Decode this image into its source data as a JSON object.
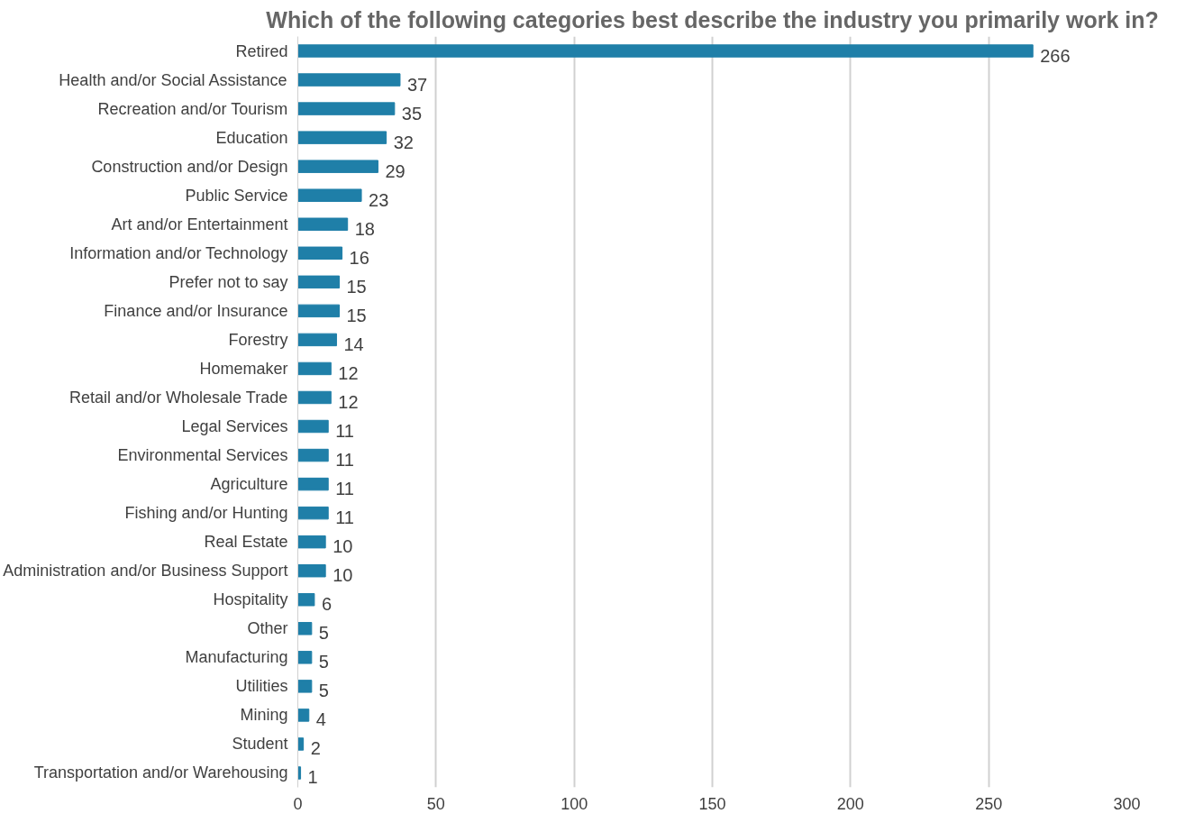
{
  "chart_data": {
    "type": "bar",
    "orientation": "horizontal",
    "title": "Which of the following categories best describe the industry you primarily work in?",
    "categories": [
      "Retired",
      "Health and/or Social Assistance",
      "Recreation and/or Tourism",
      "Education",
      "Construction and/or Design",
      "Public Service",
      "Art and/or Entertainment",
      "Information and/or Technology",
      "Prefer not to say",
      "Finance and/or Insurance",
      "Forestry",
      "Homemaker",
      "Retail and/or Wholesale Trade",
      "Legal Services",
      "Environmental Services",
      "Agriculture",
      "Fishing and/or Hunting",
      "Real Estate",
      "Administration and/or Business Support",
      "Hospitality",
      "Other",
      "Manufacturing",
      "Utilities",
      "Mining",
      "Student",
      "Transportation and/or Warehousing"
    ],
    "values": [
      266,
      37,
      35,
      32,
      29,
      23,
      18,
      16,
      15,
      15,
      14,
      12,
      12,
      11,
      11,
      11,
      11,
      10,
      10,
      6,
      5,
      5,
      5,
      4,
      2,
      1
    ],
    "color": "#1f7fa8",
    "xlim": [
      0,
      300
    ],
    "xticks": [
      0,
      50,
      100,
      150,
      200,
      250,
      300
    ],
    "grid": "x",
    "data_labels": true
  }
}
